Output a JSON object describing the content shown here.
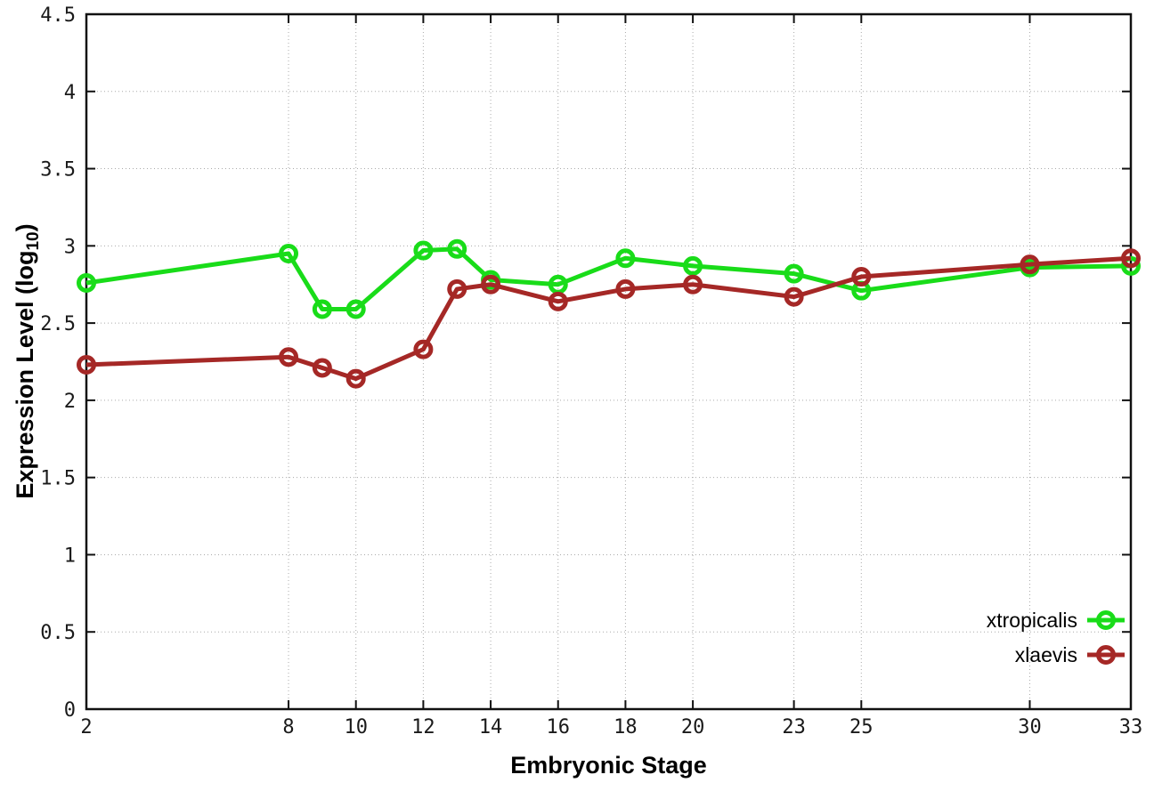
{
  "chart_data": {
    "type": "line",
    "title": "",
    "xlabel": "Embryonic Stage",
    "ylabel": "Expression Level (log10)",
    "ylabel_main": "Expression Level (log",
    "ylabel_sub": "10",
    "ylabel_close": ")",
    "xlim": [
      2,
      33
    ],
    "ylim": [
      0,
      4.5
    ],
    "x_ticks": [
      2,
      8,
      10,
      12,
      14,
      16,
      18,
      20,
      23,
      25,
      30,
      33
    ],
    "x_tick_labels": [
      "2",
      "8",
      "10",
      "12",
      "14",
      "16",
      "18",
      "20",
      "23",
      "25",
      "30",
      "33"
    ],
    "y_ticks": [
      0,
      0.5,
      1,
      1.5,
      2,
      2.5,
      3,
      3.5,
      4,
      4.5
    ],
    "y_tick_labels": [
      "0",
      "0.5",
      "1",
      "1.5",
      "2",
      "2.5",
      "3",
      "3.5",
      "4",
      "4.5"
    ],
    "grid": true,
    "legend_position": "bottom-right",
    "x": [
      2,
      8,
      9,
      10,
      12,
      13,
      14,
      16,
      18,
      20,
      23,
      25,
      30,
      33
    ],
    "series": [
      {
        "name": "xtropicalis",
        "color": "#19dc19",
        "values": [
          2.76,
          2.95,
          2.59,
          2.59,
          2.97,
          2.98,
          2.78,
          2.75,
          2.92,
          2.87,
          2.82,
          2.71,
          2.86,
          2.87
        ]
      },
      {
        "name": "xlaevis",
        "color": "#a52826",
        "values": [
          2.23,
          2.28,
          2.21,
          2.14,
          2.33,
          2.72,
          2.75,
          2.64,
          2.72,
          2.75,
          2.67,
          2.8,
          2.88,
          2.92
        ]
      }
    ],
    "colors": {
      "plot_border": "#111111",
      "grid_line": "#aaaaaa",
      "tick_label": "#1a1a1a",
      "legend_text": "#000000",
      "background": "#ffffff"
    }
  }
}
